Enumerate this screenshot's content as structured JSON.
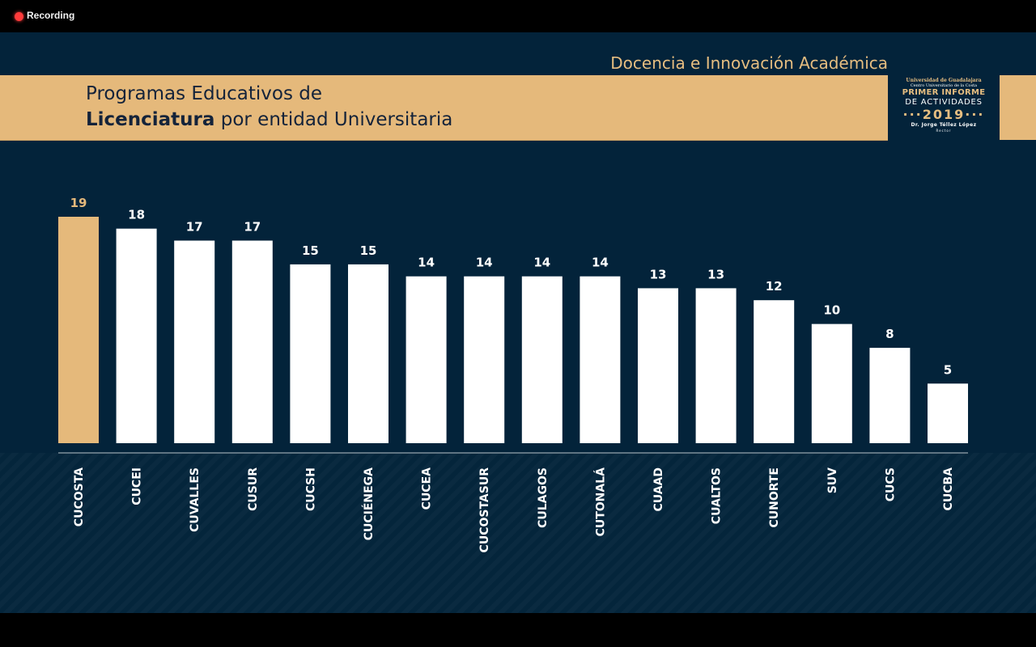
{
  "recording": {
    "label": "Recording",
    "color": "#ff3b3b"
  },
  "slide": {
    "section_title": "Docencia e Innovación Académica",
    "title_line1": "Programas Educativos de",
    "title_line2_bold": "Licenciatura",
    "title_line2_rest": " por entidad Universitaria",
    "logo": {
      "line1": "Universidad de Guadalajara",
      "line2": "Centro Universitario de la Costa",
      "line3": "PRIMER INFORME",
      "line4": "DE ACTIVIDADES",
      "line5": "···2019···",
      "line6": "Dr. Jorge Téllez López",
      "line7": "Rector"
    },
    "colors": {
      "background": "#03233a",
      "gold": "#e5b97b",
      "bar": "#ffffff",
      "highlight": "#e5b97b"
    }
  },
  "chart_data": {
    "type": "bar",
    "title": "Programas Educativos de Licenciatura por entidad Universitaria",
    "xlabel": "",
    "ylabel": "",
    "ylim": [
      0,
      19
    ],
    "grid": false,
    "highlight_category": "CUCOSTA",
    "categories": [
      "CUCOSTA",
      "CUCEI",
      "CUVALLES",
      "CUSUR",
      "CUCSH",
      "CUCIÉNEGA",
      "CUCEA",
      "CUCOSTASUR",
      "CULAGOS",
      "CUTONALÁ",
      "CUAAD",
      "CUALTOS",
      "CUNORTE",
      "SUV",
      "CUCS",
      "CUCBA"
    ],
    "values": [
      19,
      18,
      17,
      17,
      15,
      15,
      14,
      14,
      14,
      14,
      13,
      13,
      12,
      10,
      8,
      5
    ],
    "value_labels": [
      "19",
      "18",
      "17",
      "17",
      "15",
      "15",
      "14",
      "14",
      "14",
      "14",
      "13",
      "13",
      "12",
      "10",
      "8",
      "5"
    ]
  }
}
